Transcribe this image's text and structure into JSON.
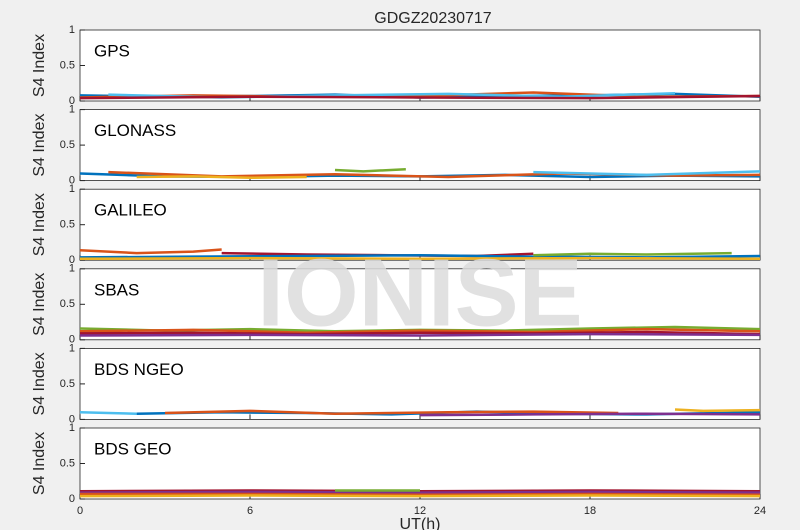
{
  "title": "GDGZ20230717",
  "xlabel": "UT(h)",
  "watermark": "IONISE",
  "chart_data": [
    {
      "type": "line",
      "label": "GPS",
      "ylabel": "S4 Index",
      "xlim": [
        0,
        24
      ],
      "xticks": [
        0,
        6,
        12,
        18,
        24
      ],
      "ylim": [
        0,
        1
      ],
      "yticks": [
        0,
        0.5,
        1
      ],
      "series": [
        {
          "color": "#0072BD",
          "x": [
            0,
            3,
            6,
            9,
            12,
            15,
            18,
            21,
            24
          ],
          "values": [
            0.08,
            0.06,
            0.07,
            0.09,
            0.05,
            0.07,
            0.08,
            0.1,
            0.06
          ]
        },
        {
          "color": "#D95319",
          "x": [
            0,
            4,
            8,
            12,
            16,
            20,
            24
          ],
          "values": [
            0.05,
            0.08,
            0.06,
            0.07,
            0.12,
            0.06,
            0.07
          ]
        },
        {
          "color": "#4DBEEE",
          "x": [
            1,
            5,
            9,
            13,
            17,
            21
          ],
          "values": [
            0.09,
            0.05,
            0.08,
            0.1,
            0.06,
            0.11
          ]
        },
        {
          "color": "#A2142F",
          "x": [
            0,
            6,
            12,
            18,
            24
          ],
          "values": [
            0.04,
            0.06,
            0.05,
            0.04,
            0.07
          ]
        }
      ]
    },
    {
      "type": "line",
      "label": "GLONASS",
      "ylabel": "S4 Index",
      "xlim": [
        0,
        24
      ],
      "xticks": [
        0,
        6,
        12,
        18,
        24
      ],
      "ylim": [
        0,
        1
      ],
      "yticks": [
        0,
        0.5,
        1
      ],
      "series": [
        {
          "color": "#0072BD",
          "x": [
            0,
            3,
            6,
            9,
            12,
            15,
            18,
            21,
            24
          ],
          "values": [
            0.1,
            0.06,
            0.05,
            0.07,
            0.06,
            0.08,
            0.05,
            0.07,
            0.06
          ]
        },
        {
          "color": "#77AC30",
          "x": [
            9,
            10,
            11.5
          ],
          "values": [
            0.15,
            0.13,
            0.16
          ]
        },
        {
          "color": "#D95319",
          "x": [
            1,
            5,
            9,
            13,
            17,
            21,
            24
          ],
          "values": [
            0.12,
            0.06,
            0.09,
            0.05,
            0.1,
            0.07,
            0.08
          ]
        },
        {
          "color": "#EDB120",
          "x": [
            2,
            4,
            6,
            8
          ],
          "values": [
            0.05,
            0.06,
            0.04,
            0.05
          ]
        },
        {
          "color": "#4DBEEE",
          "x": [
            16,
            18,
            20,
            24
          ],
          "values": [
            0.12,
            0.1,
            0.08,
            0.13
          ]
        }
      ]
    },
    {
      "type": "line",
      "label": "GALILEO",
      "ylabel": "S4 Index",
      "xlim": [
        0,
        24
      ],
      "xticks": [
        0,
        6,
        12,
        18,
        24
      ],
      "ylim": [
        0,
        1
      ],
      "yticks": [
        0,
        0.5,
        1
      ],
      "series": [
        {
          "color": "#D95319",
          "x": [
            0,
            2,
            4,
            5
          ],
          "values": [
            0.14,
            0.1,
            0.12,
            0.15
          ]
        },
        {
          "color": "#A2142F",
          "x": [
            5,
            8,
            11,
            14,
            16
          ],
          "values": [
            0.1,
            0.08,
            0.07,
            0.06,
            0.09
          ]
        },
        {
          "color": "#0072BD",
          "x": [
            0,
            4,
            8,
            12,
            16,
            20,
            24
          ],
          "values": [
            0.04,
            0.05,
            0.06,
            0.07,
            0.05,
            0.04,
            0.06
          ]
        },
        {
          "color": "#77AC30",
          "x": [
            16,
            18,
            20,
            23
          ],
          "values": [
            0.07,
            0.09,
            0.08,
            0.1
          ]
        },
        {
          "color": "#EDB120",
          "x": [
            0,
            6,
            12,
            18,
            24
          ],
          "values": [
            0.02,
            0.03,
            0.02,
            0.03,
            0.02
          ]
        }
      ]
    },
    {
      "type": "line",
      "label": "SBAS",
      "ylabel": "S4 Index",
      "xlim": [
        0,
        24
      ],
      "xticks": [
        0,
        6,
        12,
        18,
        24
      ],
      "ylim": [
        0,
        1
      ],
      "yticks": [
        0,
        0.5,
        1
      ],
      "series": [
        {
          "color": "#77AC30",
          "x": [
            0,
            3,
            6,
            9,
            12,
            15,
            18,
            21,
            24
          ],
          "values": [
            0.16,
            0.13,
            0.15,
            0.12,
            0.14,
            0.13,
            0.16,
            0.18,
            0.15
          ]
        },
        {
          "color": "#D95319",
          "x": [
            0,
            4,
            8,
            12,
            16,
            20,
            24
          ],
          "values": [
            0.12,
            0.14,
            0.1,
            0.13,
            0.11,
            0.15,
            0.12
          ]
        },
        {
          "color": "#A2142F",
          "x": [
            0,
            4,
            8,
            12,
            16,
            20,
            24
          ],
          "values": [
            0.09,
            0.1,
            0.08,
            0.1,
            0.09,
            0.11,
            0.08
          ]
        },
        {
          "color": "#7E2F8E",
          "x": [
            0,
            6,
            12,
            18,
            24
          ],
          "values": [
            0.06,
            0.07,
            0.06,
            0.08,
            0.07
          ]
        }
      ]
    },
    {
      "type": "line",
      "label": "BDS NGEO",
      "ylabel": "S4 Index",
      "xlim": [
        0,
        24
      ],
      "xticks": [
        0,
        6,
        12,
        18,
        24
      ],
      "ylim": [
        0,
        1
      ],
      "yticks": [
        0,
        0.5,
        1
      ],
      "series": [
        {
          "color": "#4DBEEE",
          "x": [
            0,
            1,
            2
          ],
          "values": [
            0.1,
            0.09,
            0.08
          ]
        },
        {
          "color": "#0072BD",
          "x": [
            2,
            5,
            8,
            11,
            14,
            17,
            20,
            24
          ],
          "values": [
            0.08,
            0.1,
            0.09,
            0.07,
            0.11,
            0.08,
            0.07,
            0.1
          ]
        },
        {
          "color": "#D95319",
          "x": [
            3,
            6,
            9,
            13,
            16,
            19
          ],
          "values": [
            0.09,
            0.12,
            0.08,
            0.1,
            0.11,
            0.09
          ]
        },
        {
          "color": "#EDB120",
          "x": [
            21,
            22,
            24
          ],
          "values": [
            0.14,
            0.12,
            0.13
          ]
        },
        {
          "color": "#7E2F8E",
          "x": [
            12,
            16,
            20,
            24
          ],
          "values": [
            0.06,
            0.07,
            0.08,
            0.07
          ]
        }
      ]
    },
    {
      "type": "line",
      "label": "BDS GEO",
      "ylabel": "S4 Index",
      "xlim": [
        0,
        24
      ],
      "xticks": [
        0,
        6,
        12,
        18,
        24
      ],
      "ylim": [
        0,
        1
      ],
      "yticks": [
        0,
        0.5,
        1
      ],
      "series": [
        {
          "color": "#A2142F",
          "x": [
            0,
            6,
            12,
            18,
            24
          ],
          "values": [
            0.11,
            0.12,
            0.11,
            0.12,
            0.11
          ]
        },
        {
          "color": "#7E2F8E",
          "x": [
            0,
            6,
            12,
            18,
            24
          ],
          "values": [
            0.09,
            0.1,
            0.09,
            0.1,
            0.09
          ]
        },
        {
          "color": "#77AC30",
          "x": [
            9,
            12
          ],
          "values": [
            0.12,
            0.12
          ]
        },
        {
          "color": "#D95319",
          "x": [
            0,
            6,
            12,
            18,
            24
          ],
          "values": [
            0.07,
            0.07,
            0.06,
            0.07,
            0.06
          ]
        },
        {
          "color": "#EDB120",
          "x": [
            0,
            6,
            12,
            18,
            24
          ],
          "values": [
            0.04,
            0.05,
            0.04,
            0.05,
            0.04
          ]
        }
      ]
    }
  ]
}
